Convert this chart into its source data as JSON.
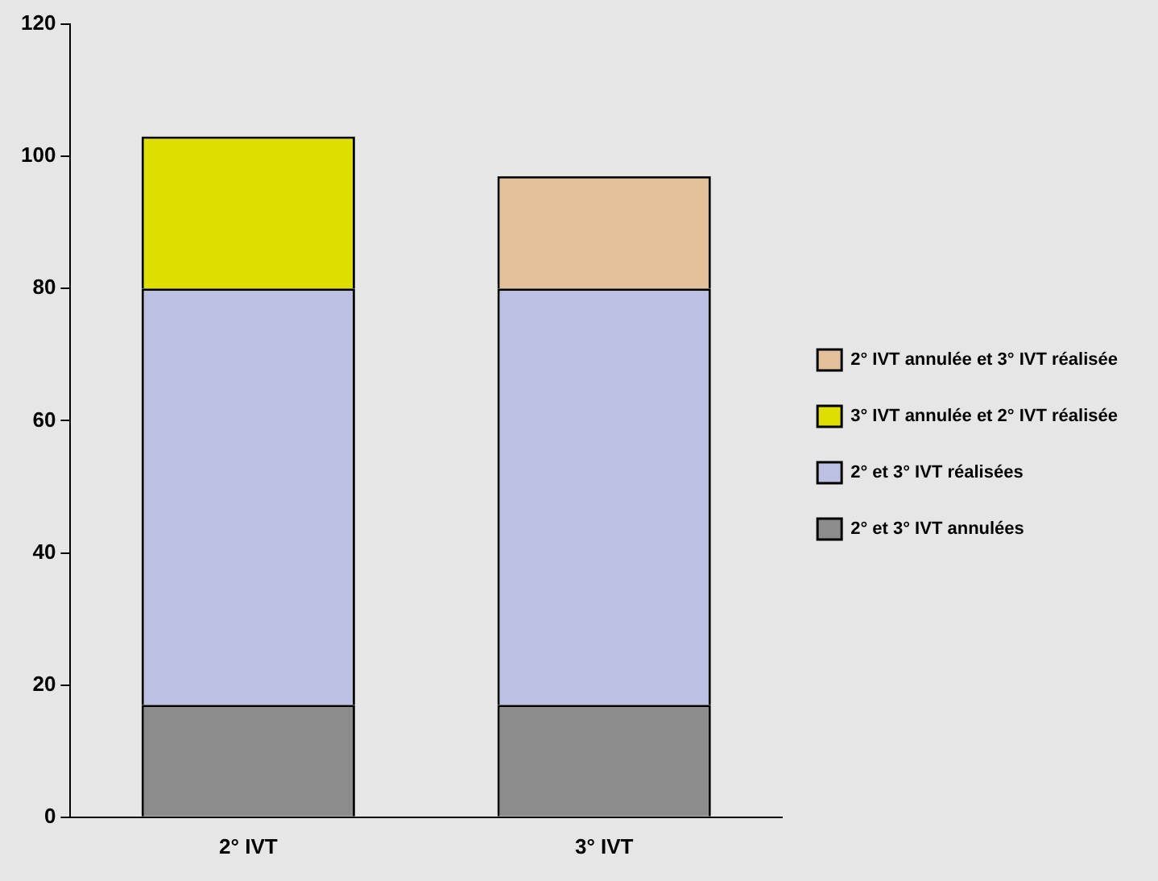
{
  "chart_data": {
    "type": "bar",
    "stacked": true,
    "categories": [
      "2° IVT",
      "3° IVT"
    ],
    "series": [
      {
        "name": "2° et 3° IVT annulées",
        "color": "#8c8c8c",
        "values": [
          17,
          17
        ]
      },
      {
        "name": "2° et 3° IVT réalisées",
        "color": "#bcc0e2",
        "values": [
          63,
          63
        ]
      },
      {
        "name": "3° IVT annulée et 2° IVT réalisée",
        "color": "#dede00",
        "values": [
          23,
          null
        ]
      },
      {
        "name": "2° IVT annulée et 3° IVT réalisée",
        "color": "#e3c29b",
        "values": [
          null,
          17
        ]
      }
    ],
    "ylim": [
      0,
      120
    ],
    "yticks": [
      0,
      20,
      40,
      60,
      80,
      100,
      120
    ],
    "grid": false,
    "legend": "right"
  }
}
